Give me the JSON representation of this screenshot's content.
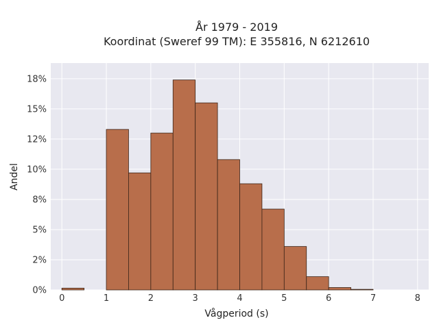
{
  "chart_data": {
    "type": "bar",
    "title_line1": "År 1979 - 2019",
    "title_line2": "Koordinat (Sweref 99 TM): E 355816, N 6212610",
    "xlabel": "Vågperiod (s)",
    "ylabel": "Andel",
    "xlim": [
      -0.25,
      8.25
    ],
    "ylim": [
      0,
      18.8
    ],
    "xticks": [
      0,
      1,
      2,
      3,
      4,
      5,
      6,
      7,
      8
    ],
    "xtick_labels": [
      "0",
      "1",
      "2",
      "3",
      "4",
      "5",
      "6",
      "7",
      "8"
    ],
    "yticks": [
      0,
      2.5,
      5,
      7.5,
      10,
      12.5,
      15,
      17.5
    ],
    "ytick_labels": [
      "0%",
      "2%",
      "5%",
      "8%",
      "10%",
      "12%",
      "15%",
      "18%"
    ],
    "bin_width": 0.5,
    "bins": [
      {
        "x0": 0.0,
        "value": 0.15
      },
      {
        "x0": 0.5,
        "value": 0.0
      },
      {
        "x0": 1.0,
        "value": 13.3
      },
      {
        "x0": 1.5,
        "value": 9.7
      },
      {
        "x0": 2.0,
        "value": 13.0
      },
      {
        "x0": 2.5,
        "value": 17.4
      },
      {
        "x0": 3.0,
        "value": 15.5
      },
      {
        "x0": 3.5,
        "value": 10.8
      },
      {
        "x0": 4.0,
        "value": 8.8
      },
      {
        "x0": 4.5,
        "value": 6.7
      },
      {
        "x0": 5.0,
        "value": 3.6
      },
      {
        "x0": 5.5,
        "value": 1.1
      },
      {
        "x0": 6.0,
        "value": 0.2
      },
      {
        "x0": 6.5,
        "value": 0.05
      }
    ],
    "grid": true,
    "colors": {
      "bar_fill": "#b86e4b",
      "bar_edge": "#3a2418",
      "plot_bg": "#e8e8f0",
      "grid": "#ffffff"
    }
  }
}
